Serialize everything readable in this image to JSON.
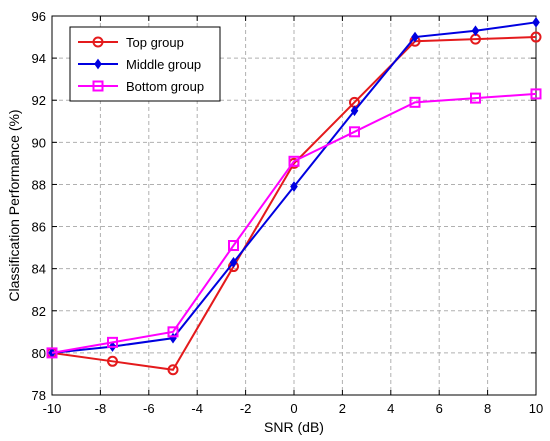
{
  "chart_data": {
    "type": "line",
    "title": "",
    "xlabel": "SNR (dB)",
    "ylabel": "Classification Performance (%)",
    "xlim": [
      -10,
      10
    ],
    "ylim": [
      78,
      96
    ],
    "xticks": [
      -10,
      -8,
      -6,
      -4,
      -2,
      0,
      2,
      4,
      6,
      8,
      10
    ],
    "yticks": [
      78,
      80,
      82,
      84,
      86,
      88,
      90,
      92,
      94,
      96
    ],
    "x": [
      -10,
      -7.5,
      -5,
      -2.5,
      0,
      2.5,
      5,
      7.5,
      10
    ],
    "grid": true,
    "legend_position": "top-left",
    "series": [
      {
        "name": "Top group",
        "color": "#e41a1c",
        "marker": "circle",
        "values": [
          80.0,
          79.6,
          79.2,
          84.1,
          89.0,
          91.9,
          94.8,
          94.9,
          95.0
        ]
      },
      {
        "name": "Middle group",
        "color": "#0000e0",
        "marker": "diamond",
        "values": [
          80.0,
          80.3,
          80.7,
          84.3,
          87.9,
          91.5,
          95.0,
          95.3,
          95.7
        ]
      },
      {
        "name": "Bottom group",
        "color": "#ff00ff",
        "marker": "square",
        "values": [
          80.0,
          80.5,
          81.0,
          85.1,
          89.1,
          90.5,
          91.9,
          92.1,
          92.3
        ]
      }
    ]
  }
}
